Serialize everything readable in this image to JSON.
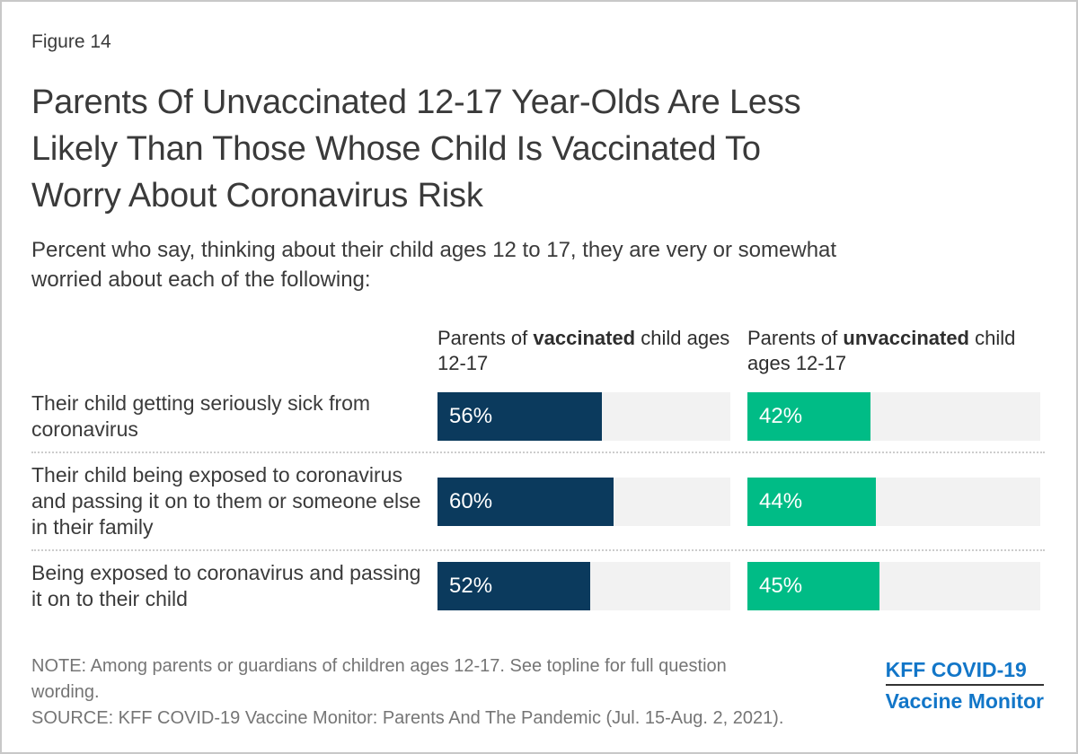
{
  "figure_label": "Figure 14",
  "title_lines": [
    "Parents Of Unvaccinated 12-17 Year-Olds Are Less",
    "Likely Than Those Whose Child Is Vaccinated To",
    "Worry About Coronavirus Risk"
  ],
  "subtitle_lines": [
    "Percent who say, thinking about their child ages 12 to 17, they are very or somewhat",
    "worried about each of the following:"
  ],
  "column_headers": [
    {
      "prefix": "Parents of ",
      "emphasis": "vaccinated",
      "suffix": " child ages 12-17"
    },
    {
      "prefix": "Parents of ",
      "emphasis": "unvaccinated",
      "suffix": " child ages 12-17"
    }
  ],
  "rows": [
    {
      "label": "Their child getting seriously sick from coronavirus",
      "vaccinated_value": 56,
      "vaccinated_label": "56%",
      "unvaccinated_value": 42,
      "unvaccinated_label": "42%"
    },
    {
      "label": "Their child being exposed to coronavirus and passing it on to them or someone else in their family",
      "vaccinated_value": 60,
      "vaccinated_label": "60%",
      "unvaccinated_value": 44,
      "unvaccinated_label": "44%"
    },
    {
      "label": "Being exposed to coronavirus and passing it on to their child",
      "vaccinated_value": 52,
      "vaccinated_label": "52%",
      "unvaccinated_value": 45,
      "unvaccinated_label": "45%"
    }
  ],
  "chart_data": {
    "type": "bar",
    "orientation": "horizontal",
    "title": "Parents Of Unvaccinated 12-17 Year-Olds Are Less Likely Than Those Whose Child Is Vaccinated To Worry About Coronavirus Risk",
    "subtitle": "Percent who say, thinking about their child ages 12 to 17, they are very or somewhat worried about each of the following:",
    "categories": [
      "Their child getting seriously sick from coronavirus",
      "Their child being exposed to coronavirus and passing it on to them or someone else in their family",
      "Being exposed to coronavirus and passing it on to their child"
    ],
    "series": [
      {
        "name": "Parents of vaccinated child ages 12-17",
        "values": [
          56,
          60,
          52
        ],
        "color": "#0b3a5d"
      },
      {
        "name": "Parents of unvaccinated child ages 12-17",
        "values": [
          42,
          44,
          45
        ],
        "color": "#00bc86"
      }
    ],
    "value_format": "percent",
    "xlim": [
      0,
      100
    ],
    "grid": false,
    "legend_position": "column-headers-above-bars"
  },
  "footer": {
    "note_line1": "NOTE: Among parents or guardians of children ages 12-17. See topline for full question",
    "note_line2": "wording.",
    "source": "SOURCE: KFF COVID-19 Vaccine Monitor: Parents And The Pandemic (Jul. 15-Aug. 2, 2021)."
  },
  "logo": {
    "line1": "KFF COVID-19",
    "line2": "Vaccine Monitor"
  },
  "colors": {
    "navy": "#0b3a5d",
    "green": "#00bc86",
    "bar_track": "#f2f2f2",
    "kff_blue": "#1276c8",
    "text_dark": "#3a3a3a",
    "text_gray": "#757575",
    "page_border": "#c8c8c8"
  }
}
